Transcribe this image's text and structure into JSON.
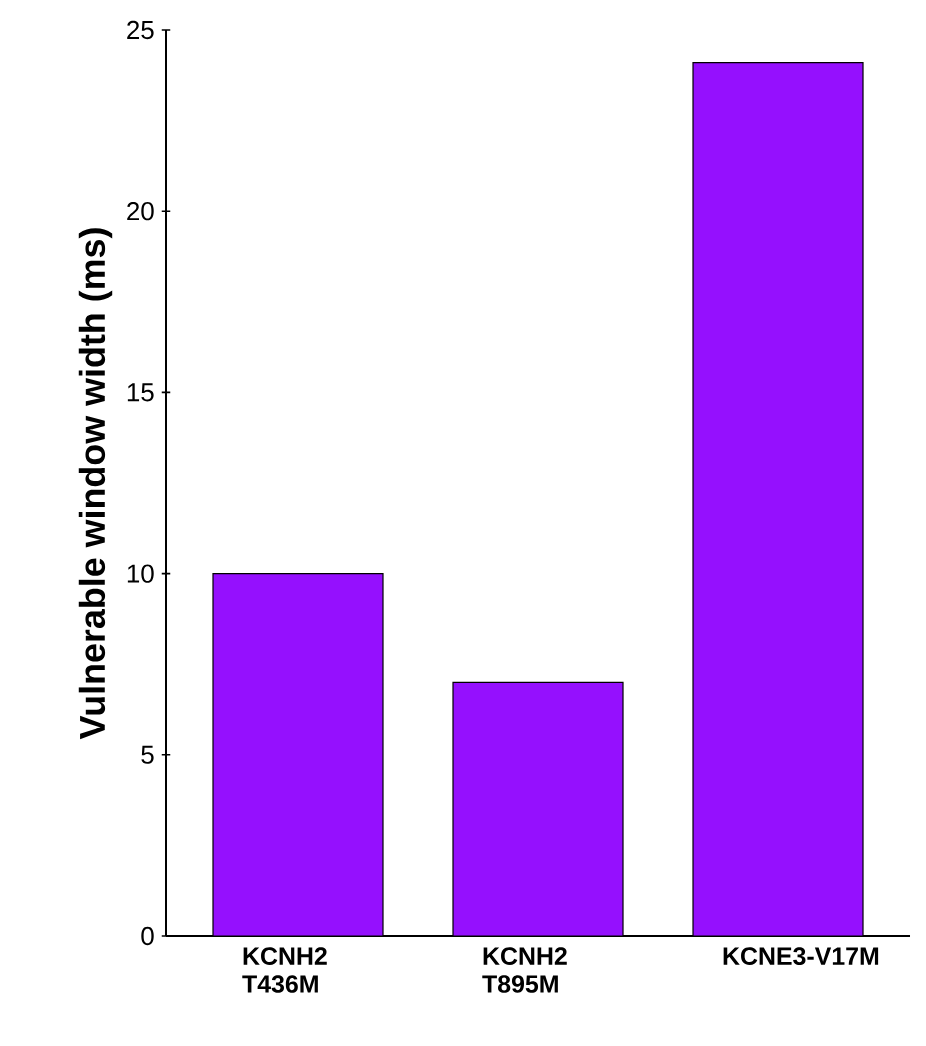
{
  "chart_data": {
    "type": "bar",
    "ylabel": "Vulnerable window width (ms)",
    "categories": [
      "KCNH2 T436M",
      "KCNH2 T895M",
      "KCNE3-V17M"
    ],
    "values": [
      10,
      7,
      24.1
    ],
    "color": "#9510fe",
    "ylim": [
      0,
      25
    ],
    "yticks": [
      0,
      5,
      10,
      15,
      20,
      25
    ]
  }
}
